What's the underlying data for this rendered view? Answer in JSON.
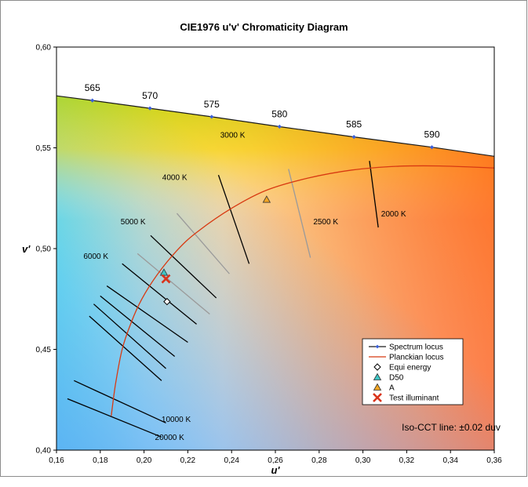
{
  "chart_data": {
    "type": "scatter",
    "title": "CIE1976 u'v' Chromaticity Diagram",
    "xlabel": "u'",
    "ylabel": "v'",
    "xlim": [
      0.16,
      0.36
    ],
    "ylim": [
      0.4,
      0.6
    ],
    "x_ticks": [
      "0,16",
      "0,18",
      "0,20",
      "0,22",
      "0,24",
      "0,26",
      "0,28",
      "0,30",
      "0,32",
      "0,34",
      "0,36"
    ],
    "y_ticks": [
      "0,40",
      "0,45",
      "0,50",
      "0,55",
      "0,60"
    ],
    "grid": false,
    "legend_placement": "bottom-right",
    "spectrum_locus": {
      "name": "Spectrum locus",
      "points": [
        [
          0.16,
          0.5758
        ],
        [
          0.1764,
          0.5735
        ],
        [
          0.2027,
          0.5696
        ],
        [
          0.2309,
          0.5654
        ],
        [
          0.2619,
          0.5605
        ],
        [
          0.2959,
          0.5554
        ],
        [
          0.3315,
          0.5503
        ],
        [
          0.36,
          0.5458
        ]
      ],
      "wavelengths": [
        "565",
        "570",
        "575",
        "580",
        "585",
        "590"
      ]
    },
    "planckian_locus": {
      "name": "Planckian locus",
      "points": [
        [
          0.185,
          0.417
        ],
        [
          0.187,
          0.433
        ],
        [
          0.19,
          0.45
        ],
        [
          0.194,
          0.463
        ],
        [
          0.199,
          0.475
        ],
        [
          0.206,
          0.487
        ],
        [
          0.215,
          0.499
        ],
        [
          0.224,
          0.508
        ],
        [
          0.24,
          0.52
        ],
        [
          0.256,
          0.529
        ],
        [
          0.275,
          0.535
        ],
        [
          0.295,
          0.539
        ],
        [
          0.315,
          0.5408
        ],
        [
          0.335,
          0.541
        ],
        [
          0.36,
          0.54
        ]
      ]
    },
    "iso_cct_lines": [
      {
        "label": "20000 K",
        "u": [
          0.165,
          0.208
        ],
        "v": [
          0.4255,
          0.4065
        ]
      },
      {
        "label": "10000 K",
        "u": [
          0.168,
          0.21
        ],
        "v": [
          0.4345,
          0.4135
        ]
      },
      {
        "label": "",
        "u": [
          0.175,
          0.208
        ],
        "v": [
          0.4665,
          0.4345
        ]
      },
      {
        "label": "",
        "u": [
          0.177,
          0.21
        ],
        "v": [
          0.4725,
          0.4405
        ]
      },
      {
        "label": "",
        "u": [
          0.18,
          0.214
        ],
        "v": [
          0.4765,
          0.4465
        ]
      },
      {
        "label": "",
        "u": [
          0.183,
          0.22
        ],
        "v": [
          0.4815,
          0.4535
        ]
      },
      {
        "label": "6000 K",
        "u": [
          0.19,
          0.224
        ],
        "v": [
          0.4925,
          0.4625
        ]
      },
      {
        "label": "",
        "u": [
          0.197,
          0.23
        ],
        "v": [
          0.4975,
          0.4675
        ]
      },
      {
        "label": "5000 K",
        "u": [
          0.203,
          0.233
        ],
        "v": [
          0.5065,
          0.4755
        ]
      },
      {
        "label": "4000 K",
        "u": [
          0.215,
          0.239
        ],
        "v": [
          0.5175,
          0.4875
        ]
      },
      {
        "label": "3000 K",
        "u": [
          0.234,
          0.248
        ],
        "v": [
          0.5365,
          0.4925
        ]
      },
      {
        "label": "2500 K",
        "u": [
          0.266,
          0.276
        ],
        "v": [
          0.5395,
          0.4955
        ]
      },
      {
        "label": "2000 K",
        "u": [
          0.303,
          0.307
        ],
        "v": [
          0.5435,
          0.5105
        ]
      }
    ],
    "points": [
      {
        "name": "Equi energy",
        "u": 0.2105,
        "v": 0.4737,
        "marker": "diamond",
        "color": "#000000"
      },
      {
        "name": "D50",
        "u": 0.2091,
        "v": 0.4881,
        "marker": "triangle",
        "color": "#3ec6c6"
      },
      {
        "name": "A",
        "u": 0.256,
        "v": 0.5243,
        "marker": "triangle",
        "color": "#f5a623"
      },
      {
        "name": "Test illuminant",
        "u": 0.21,
        "v": 0.485,
        "marker": "x",
        "color": "#d9341c"
      }
    ],
    "annotation": "Iso-CCT line: ±0.02 duv"
  },
  "colors": {
    "spectrum_locus": "#1a1a1a",
    "spectrum_marker": "#3a5fd9",
    "planckian_locus": "#d83a12",
    "iso_dark": "#000000",
    "iso_light": "#9a9a9a"
  }
}
